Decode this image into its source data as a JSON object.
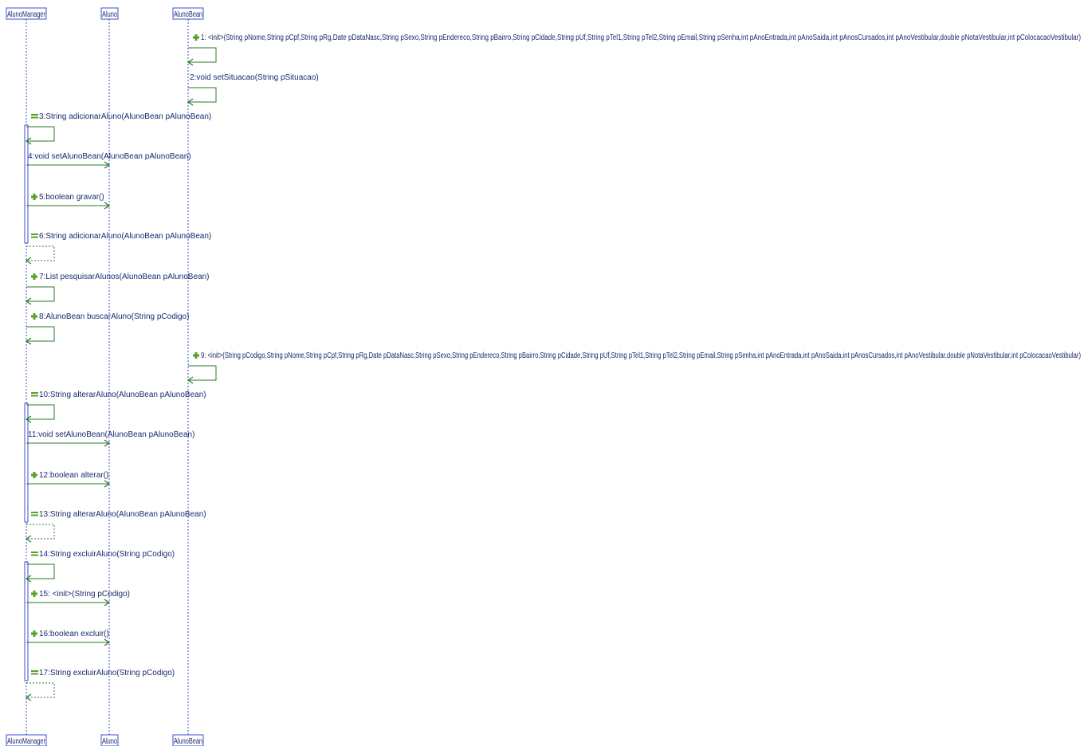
{
  "lifelines": [
    {
      "id": "mgr",
      "name": "AlunoManager"
    },
    {
      "id": "aluno",
      "name": "Aluno"
    },
    {
      "id": "bean",
      "name": "AlunoBean"
    }
  ],
  "messages": [
    {
      "n": 1,
      "from": "bean",
      "to": "bean",
      "kind": "self",
      "icon": "plus",
      "label": "1:  <init>(String pNome,String pCpf,String pRg,Date pDataNasc,String pSexo,String pEndereco,String pBairro,String pCidade,String pUf,String pTel1,String pTel2,String pEmail,String pSenha,int pAnoEntrada,int pAnoSaida,int pAnosCursados,int pAnoVestibular,double pNotaVestibular,int pColocacaoVestibular)"
    },
    {
      "n": 2,
      "from": "bean",
      "to": "bean",
      "kind": "self",
      "icon": "none",
      "label": "2:void setSituacao(String pSituacao)"
    },
    {
      "n": 3,
      "from": "mgr",
      "to": "mgr",
      "kind": "self",
      "icon": "equal",
      "label": "3:String adicionarAluno(AlunoBean pAlunoBean)"
    },
    {
      "n": 4,
      "from": "mgr",
      "to": "aluno",
      "kind": "call",
      "icon": "none",
      "label": "4:void setAlunoBean(AlunoBean pAlunoBean)"
    },
    {
      "n": 5,
      "from": "mgr",
      "to": "aluno",
      "kind": "call",
      "icon": "plus",
      "label": "5:boolean gravar()"
    },
    {
      "n": 6,
      "from": "mgr",
      "to": "mgr",
      "kind": "return",
      "icon": "equal",
      "label": "6:String adicionarAluno(AlunoBean pAlunoBean)"
    },
    {
      "n": 7,
      "from": "mgr",
      "to": "mgr",
      "kind": "self",
      "icon": "plus",
      "label": "7:List pesquisarAlunos(AlunoBean pAlunoBean)"
    },
    {
      "n": 8,
      "from": "mgr",
      "to": "mgr",
      "kind": "self",
      "icon": "plus",
      "label": "8:AlunoBean buscarAluno(String pCodigo)"
    },
    {
      "n": 9,
      "from": "bean",
      "to": "bean",
      "kind": "self",
      "icon": "plus",
      "label": "9:  <init>(String pCodigo,String pNome,String pCpf,String pRg,Date pDataNasc,String pSexo,String pEndereco,String pBairro,String pCidade,String pUf,String pTel1,String pTel2,String pEmail,String pSenha,int pAnoEntrada,int pAnoSaida,int pAnosCursados,int pAnoVestibular,double pNotaVestibular,int pColocacaoVestibular)"
    },
    {
      "n": 10,
      "from": "mgr",
      "to": "mgr",
      "kind": "self",
      "icon": "equal",
      "label": "10:String alterarAluno(AlunoBean pAlunoBean)"
    },
    {
      "n": 11,
      "from": "mgr",
      "to": "aluno",
      "kind": "call",
      "icon": "none",
      "label": "11:void setAlunoBean(AlunoBean pAlunoBean)"
    },
    {
      "n": 12,
      "from": "mgr",
      "to": "aluno",
      "kind": "call",
      "icon": "plus",
      "label": "12:boolean alterar()"
    },
    {
      "n": 13,
      "from": "mgr",
      "to": "mgr",
      "kind": "return",
      "icon": "equal",
      "label": "13:String alterarAluno(AlunoBean pAlunoBean)"
    },
    {
      "n": 14,
      "from": "mgr",
      "to": "mgr",
      "kind": "self",
      "icon": "equal",
      "label": "14:String excluirAluno(String pCodigo)"
    },
    {
      "n": 15,
      "from": "mgr",
      "to": "aluno",
      "kind": "call",
      "icon": "plus",
      "label": "15:  <init>(String pCodigo)"
    },
    {
      "n": 16,
      "from": "mgr",
      "to": "aluno",
      "kind": "call",
      "icon": "plus",
      "label": "16:boolean excluir()"
    },
    {
      "n": 17,
      "from": "mgr",
      "to": "mgr",
      "kind": "return",
      "icon": "equal",
      "label": "17:String excluirAluno(String pCodigo)"
    }
  ],
  "colors": {
    "lifeline": "#3b4fd1",
    "message": "#2a7a2a",
    "text": "#1a2a6c",
    "icon": "#5aa02c"
  }
}
